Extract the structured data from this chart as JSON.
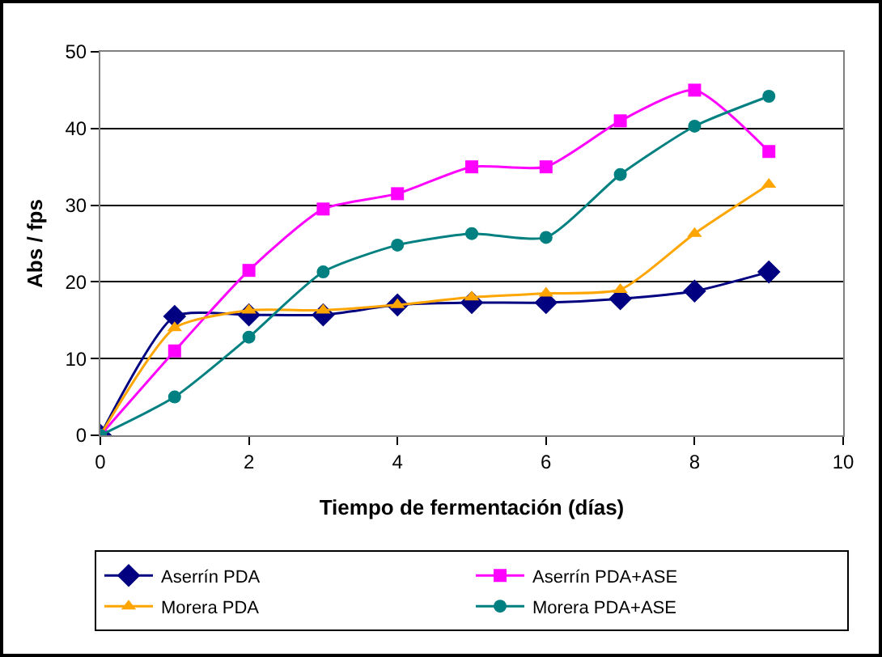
{
  "chart_data": {
    "type": "line",
    "xlabel": "Tiempo de fermentación (días)",
    "ylabel": "Abs / fps",
    "x": [
      0,
      1,
      2,
      3,
      4,
      5,
      6,
      7,
      8,
      9
    ],
    "series": [
      {
        "name": "Aserrín PDA",
        "color": "#000080",
        "marker": "diamond",
        "values": [
          0,
          15.5,
          15.7,
          15.7,
          17,
          17.3,
          17.3,
          17.8,
          18.8,
          21.3
        ]
      },
      {
        "name": "Aserrín PDA+ASE",
        "color": "#ff00ff",
        "marker": "square",
        "values": [
          0,
          11,
          21.5,
          29.5,
          31.5,
          35,
          35,
          41,
          45,
          37
        ]
      },
      {
        "name": "Morera PDA",
        "color": "#ffa500",
        "marker": "triangle",
        "values": [
          0,
          14,
          16.3,
          16.3,
          17,
          18,
          18.5,
          19,
          26.3,
          32.7
        ]
      },
      {
        "name": "Morera PDA+ASE",
        "color": "#008080",
        "marker": "circle",
        "values": [
          0,
          5,
          12.8,
          21.3,
          24.8,
          26.3,
          25.8,
          34,
          40.3,
          44.2
        ]
      }
    ],
    "xlim": [
      0,
      10
    ],
    "xticks": [
      0,
      2,
      4,
      6,
      8,
      10
    ],
    "ylim": [
      0,
      50
    ],
    "yticks": [
      0,
      10,
      20,
      30,
      40,
      50
    ],
    "grid": "y",
    "legend": "bottom",
    "line_style": "solid"
  }
}
